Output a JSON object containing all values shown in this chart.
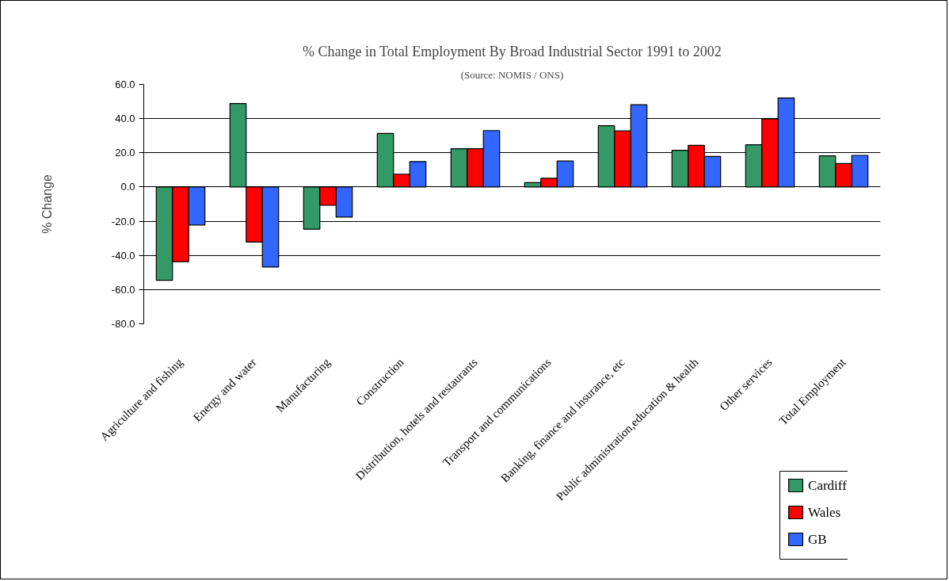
{
  "chart_data": {
    "type": "bar",
    "title": "% Change in Total Employment By Broad Industrial Sector 1991 to 2002",
    "subtitle": "(Source: NOMIS / ONS)",
    "ylabel": "% Change",
    "categories": [
      "Agriculture and fishing",
      "Energy and water",
      "Manufacturing",
      "Construction",
      "Distribution, hotels and restaurants",
      "Transport and communications",
      "Banking, finance and insurance, etc",
      "Public administration,education & health",
      "Other services",
      "Total Employment"
    ],
    "series": [
      {
        "name": "Cardiff",
        "color": "#339966",
        "values": [
          -54.6,
          48.8,
          -24.7,
          31.3,
          22.4,
          2.6,
          35.8,
          21.5,
          24.7,
          18.2
        ]
      },
      {
        "name": "Wales",
        "color": "#ff0000",
        "values": [
          -43.7,
          -32.2,
          -10.7,
          7.5,
          22.4,
          5.1,
          32.8,
          24.4,
          39.8,
          13.7
        ]
      },
      {
        "name": "GB",
        "color": "#3366ff",
        "values": [
          -22.2,
          -46.8,
          -17.6,
          14.9,
          33.0,
          15.2,
          48.1,
          17.9,
          52.1,
          18.5
        ]
      }
    ],
    "ylim": [
      -80,
      60
    ],
    "yticks": [
      {
        "value": -80,
        "label": "-80.0"
      },
      {
        "value": -60,
        "label": "-60.0"
      },
      {
        "value": -40,
        "label": "-40.0"
      },
      {
        "value": -20,
        "label": "-20.0"
      },
      {
        "value": 0,
        "label": "0.0"
      },
      {
        "value": 20,
        "label": "20.0"
      },
      {
        "value": 40,
        "label": "40.0"
      },
      {
        "value": 60,
        "label": "60.0"
      }
    ],
    "grid": "y",
    "legend": "bottom right"
  }
}
